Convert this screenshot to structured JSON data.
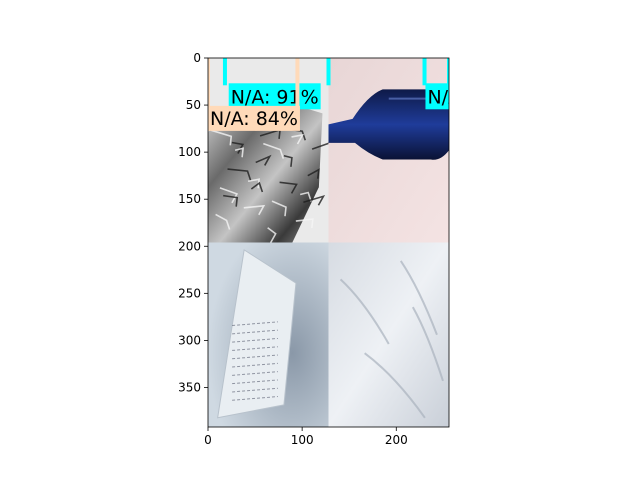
{
  "chart_data": {
    "type": "image",
    "xlim": [
      0,
      256
    ],
    "ylim": [
      392,
      0
    ],
    "x_ticks": [
      0,
      100,
      200
    ],
    "y_ticks": [
      0,
      50,
      100,
      150,
      200,
      250,
      300,
      350
    ],
    "tiles": [
      {
        "name": "crumpled-aluminum-foil",
        "x": [
          0,
          128
        ],
        "y": [
          0,
          196
        ]
      },
      {
        "name": "blue-glass-bottle",
        "x": [
          128,
          256
        ],
        "y": [
          0,
          196
        ]
      },
      {
        "name": "handwritten-paper-sheet",
        "x": [
          0,
          128
        ],
        "y": [
          196,
          392
        ]
      },
      {
        "name": "white-plastic-bag",
        "x": [
          128,
          256
        ],
        "y": [
          196,
          392
        ]
      }
    ],
    "detections": [
      {
        "label": "N/A: 91%",
        "color": "#00ffff",
        "box_x": [
          18,
          128
        ],
        "label_anchor": [
          22,
          29
        ],
        "label_height": 26
      },
      {
        "label": "N/A: 84%",
        "color": "#ffdab9",
        "box_x": [
          0,
          95
        ],
        "label_anchor": [
          0,
          53
        ],
        "label_height": 25
      },
      {
        "label": "N/A",
        "color": "#00ffff",
        "box_x": [
          230,
          256
        ],
        "label_anchor": [
          231,
          29
        ],
        "label_height": 26
      }
    ]
  }
}
